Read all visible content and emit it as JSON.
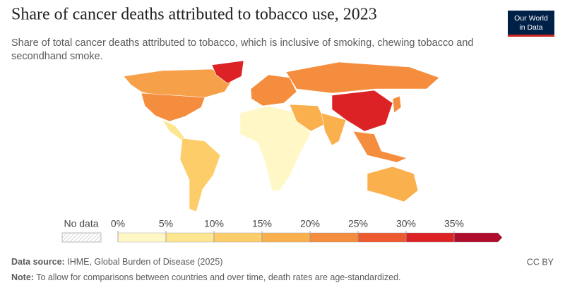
{
  "header": {
    "title": "Share of cancer deaths attributed to tobacco use, 2023",
    "subtitle": "Share of total cancer deaths attributed to tobacco, which is inclusive of smoking, chewing tobacco and secondhand smoke.",
    "logo": [
      "Our World",
      "in Data"
    ]
  },
  "legend": {
    "no_data": "No data",
    "ticks": [
      {
        "value": 0,
        "label": "0%"
      },
      {
        "value": 5,
        "label": "5%"
      },
      {
        "value": 10,
        "label": "10%"
      },
      {
        "value": 15,
        "label": "15%"
      },
      {
        "value": 20,
        "label": "20%"
      },
      {
        "value": 25,
        "label": "25%"
      },
      {
        "value": 30,
        "label": "30%"
      },
      {
        "value": 35,
        "label": "35%"
      }
    ],
    "colors": [
      "#fff8c6",
      "#fde68f",
      "#fdcd6a",
      "#fbb04e",
      "#f58d3e",
      "#ee5a30",
      "#dc2224",
      "#ae0d2c"
    ]
  },
  "footer": {
    "source_label": "Data source:",
    "source": "IHME, Global Burden of Disease (2025)",
    "note_label": "Note:",
    "note": "To allow for comparisons between countries and over time, death rates are age-standardized.",
    "license": "CC BY"
  }
}
